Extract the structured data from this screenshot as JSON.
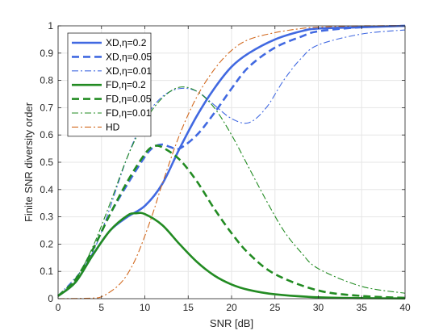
{
  "chart_data": {
    "type": "line",
    "xlabel": "SNR [dB]",
    "ylabel": "Finite SNR diversity order",
    "xlim": [
      0,
      40
    ],
    "ylim": [
      0,
      1
    ],
    "xticks": [
      0,
      5,
      10,
      15,
      20,
      25,
      30,
      35,
      40
    ],
    "yticks": [
      0,
      0.1,
      0.2,
      0.3,
      0.4,
      0.5,
      0.6,
      0.7,
      0.8,
      0.9,
      1
    ],
    "grid": true,
    "legend_position": "top-left",
    "series": [
      {
        "name": "XD,η=0.2",
        "color": "#4169e1",
        "dash": "solid",
        "width": "thick",
        "x": [
          0,
          2,
          4,
          6,
          8,
          10,
          12,
          14,
          16,
          18,
          20,
          22,
          25,
          28,
          30,
          35,
          40
        ],
        "y": [
          0.01,
          0.06,
          0.16,
          0.25,
          0.3,
          0.34,
          0.42,
          0.55,
          0.67,
          0.77,
          0.85,
          0.9,
          0.95,
          0.98,
          0.99,
          0.995,
          1.0
        ]
      },
      {
        "name": "XD,η=0.05",
        "color": "#4169e1",
        "dash": "dashed",
        "width": "thick",
        "x": [
          0,
          2,
          4,
          6,
          8,
          10,
          11,
          12,
          13,
          14,
          16,
          18,
          20,
          22,
          25,
          28,
          30,
          35,
          40
        ],
        "y": [
          0.01,
          0.07,
          0.18,
          0.31,
          0.42,
          0.52,
          0.555,
          0.565,
          0.555,
          0.55,
          0.6,
          0.68,
          0.77,
          0.85,
          0.92,
          0.96,
          0.98,
          0.995,
          1.0
        ]
      },
      {
        "name": "XD,η=0.01",
        "color": "#4169e1",
        "dash": "dashdot",
        "width": "thin",
        "x": [
          0,
          4,
          8,
          10,
          12,
          14,
          16,
          18,
          20,
          22,
          24,
          26,
          28,
          30,
          35,
          40
        ],
        "y": [
          0.01,
          0.17,
          0.52,
          0.66,
          0.74,
          0.77,
          0.76,
          0.71,
          0.66,
          0.645,
          0.7,
          0.8,
          0.88,
          0.93,
          0.97,
          0.985
        ]
      },
      {
        "name": "FD,η=0.2",
        "color": "#228b22",
        "dash": "solid",
        "width": "thick",
        "x": [
          0,
          2,
          4,
          6,
          8,
          9,
          10,
          12,
          14,
          16,
          18,
          20,
          22,
          25,
          30,
          35,
          40
        ],
        "y": [
          0.01,
          0.06,
          0.16,
          0.25,
          0.305,
          0.313,
          0.31,
          0.27,
          0.2,
          0.135,
          0.085,
          0.052,
          0.032,
          0.016,
          0.005,
          0.002,
          0.001
        ]
      },
      {
        "name": "FD,η=0.05",
        "color": "#228b22",
        "dash": "dashed",
        "width": "thick",
        "x": [
          0,
          2,
          4,
          6,
          8,
          10,
          11,
          12,
          14,
          16,
          18,
          20,
          22,
          25,
          30,
          35,
          40
        ],
        "y": [
          0.01,
          0.07,
          0.18,
          0.31,
          0.43,
          0.53,
          0.558,
          0.555,
          0.51,
          0.43,
          0.33,
          0.24,
          0.165,
          0.09,
          0.03,
          0.01,
          0.003
        ]
      },
      {
        "name": "FD,η=0.01",
        "color": "#228b22",
        "dash": "dashdot",
        "width": "thin",
        "x": [
          0,
          2,
          4,
          6,
          8,
          10,
          12,
          14,
          16,
          18,
          20,
          22,
          24,
          26,
          28,
          30,
          35,
          40
        ],
        "y": [
          0.01,
          0.07,
          0.19,
          0.35,
          0.52,
          0.65,
          0.735,
          0.775,
          0.76,
          0.7,
          0.6,
          0.48,
          0.36,
          0.25,
          0.17,
          0.11,
          0.045,
          0.02
        ]
      },
      {
        "name": "HD",
        "color": "#d2691e",
        "dash": "dashdot",
        "width": "thin",
        "x": [
          0,
          4,
          5,
          6,
          7,
          8,
          9,
          10,
          11,
          12,
          14,
          16,
          18,
          20,
          22,
          25,
          28,
          30,
          35,
          40
        ],
        "y": [
          0.0,
          0.002,
          0.007,
          0.025,
          0.05,
          0.09,
          0.15,
          0.23,
          0.32,
          0.42,
          0.6,
          0.74,
          0.84,
          0.91,
          0.95,
          0.975,
          0.99,
          0.995,
          1.0,
          1.0
        ]
      }
    ]
  }
}
